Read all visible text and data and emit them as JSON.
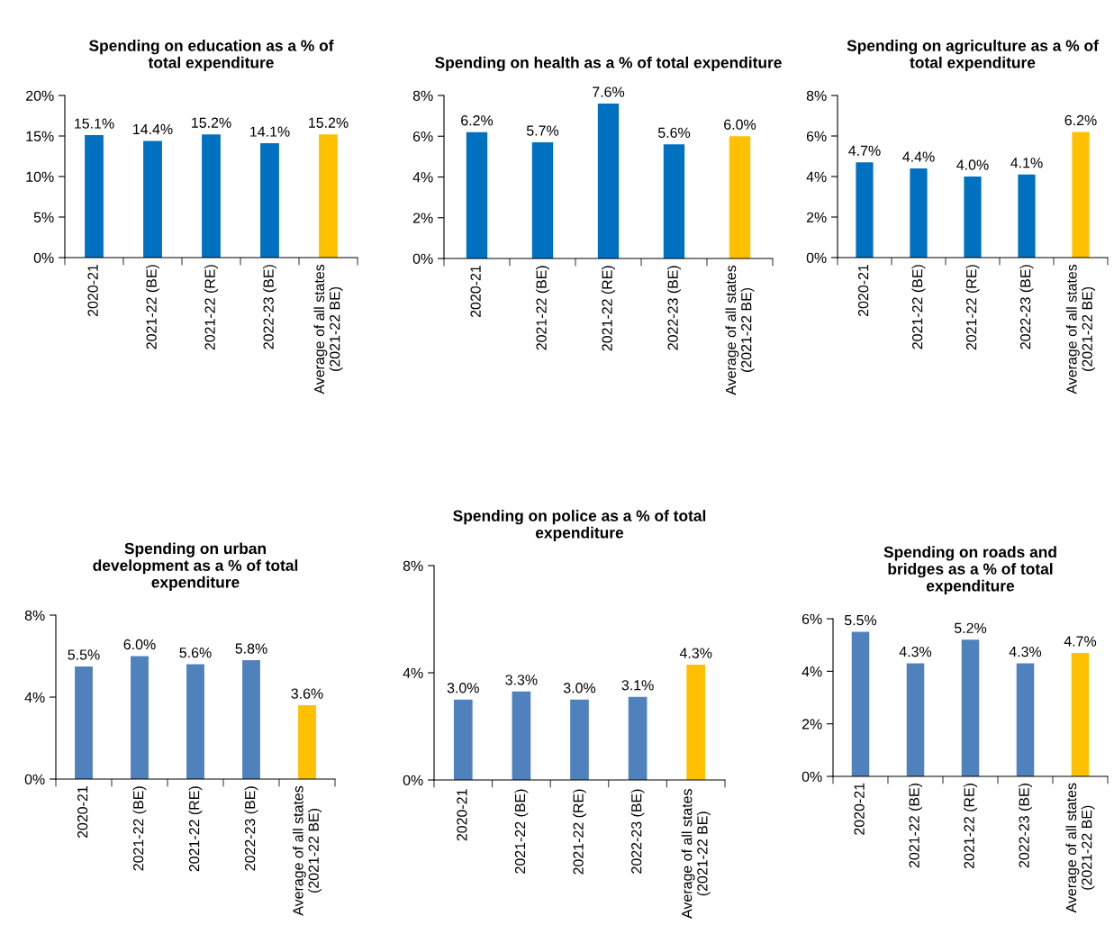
{
  "chart_data": [
    {
      "type": "bar",
      "title": "Spending on education as a % of total expenditure",
      "categories": [
        "2020-21",
        "2021-22 (BE)",
        "2021-22 (RE)",
        "2022-23 (BE)",
        "Average of all states (2021-22 BE)"
      ],
      "values": [
        15.1,
        14.4,
        15.2,
        14.1,
        15.2
      ],
      "value_labels": [
        "15.1%",
        "14.4%",
        "15.2%",
        "14.1%",
        "15.2%"
      ],
      "colors": [
        "#0070c0",
        "#0070c0",
        "#0070c0",
        "#0070c0",
        "#ffc000"
      ],
      "ylim": [
        0,
        20
      ],
      "yticks": [
        {
          "value": 0,
          "label": "0%"
        },
        {
          "value": 5,
          "label": "5%"
        },
        {
          "value": 10,
          "label": "10%"
        },
        {
          "value": 15,
          "label": "15%"
        },
        {
          "value": 20,
          "label": "20%"
        }
      ],
      "grid": false,
      "legend": false
    },
    {
      "type": "bar",
      "title": "Spending on health as a % of total expenditure",
      "categories": [
        "2020-21",
        "2021-22 (BE)",
        "2021-22 (RE)",
        "2022-23 (BE)",
        "Average of all states (2021-22 BE)"
      ],
      "values": [
        6.2,
        5.7,
        7.6,
        5.6,
        6.0
      ],
      "value_labels": [
        "6.2%",
        "5.7%",
        "7.6%",
        "5.6%",
        "6.0%"
      ],
      "colors": [
        "#0070c0",
        "#0070c0",
        "#0070c0",
        "#0070c0",
        "#ffc000"
      ],
      "ylim": [
        0,
        8
      ],
      "yticks": [
        {
          "value": 0,
          "label": "0%"
        },
        {
          "value": 2,
          "label": "2%"
        },
        {
          "value": 4,
          "label": "4%"
        },
        {
          "value": 6,
          "label": "6%"
        },
        {
          "value": 8,
          "label": "8%"
        }
      ],
      "grid": false,
      "legend": false
    },
    {
      "type": "bar",
      "title": "Spending on agriculture as a % of total expenditure",
      "categories": [
        "2020-21",
        "2021-22 (BE)",
        "2021-22 (RE)",
        "2022-23 (BE)",
        "Average of all states (2021-22 BE)"
      ],
      "values": [
        4.7,
        4.4,
        4.0,
        4.1,
        6.2
      ],
      "value_labels": [
        "4.7%",
        "4.4%",
        "4.0%",
        "4.1%",
        "6.2%"
      ],
      "colors": [
        "#0070c0",
        "#0070c0",
        "#0070c0",
        "#0070c0",
        "#ffc000"
      ],
      "ylim": [
        0,
        8
      ],
      "yticks": [
        {
          "value": 0,
          "label": "0%"
        },
        {
          "value": 2,
          "label": "2%"
        },
        {
          "value": 4,
          "label": "4%"
        },
        {
          "value": 6,
          "label": "6%"
        },
        {
          "value": 8,
          "label": "8%"
        }
      ],
      "grid": false,
      "legend": false
    },
    {
      "type": "bar",
      "title": "Spending on urban development as a % of total expenditure",
      "categories": [
        "2020-21",
        "2021-22 (BE)",
        "2021-22 (RE)",
        "2022-23 (BE)",
        "Average of all states (2021-22 BE)"
      ],
      "values": [
        5.5,
        6.0,
        5.6,
        5.8,
        3.6
      ],
      "value_labels": [
        "5.5%",
        "6.0%",
        "5.6%",
        "5.8%",
        "3.6%"
      ],
      "colors": [
        "#4f81bd",
        "#4f81bd",
        "#4f81bd",
        "#4f81bd",
        "#ffc000"
      ],
      "ylim": [
        0,
        8
      ],
      "yticks": [
        {
          "value": 0,
          "label": "0%"
        },
        {
          "value": 4,
          "label": "4%"
        },
        {
          "value": 8,
          "label": "8%"
        }
      ],
      "grid": false,
      "legend": false
    },
    {
      "type": "bar",
      "title": "Spending on police as a % of total expenditure",
      "categories": [
        "2020-21",
        "2021-22 (BE)",
        "2021-22 (RE)",
        "2022-23 (BE)",
        "Average of all states (2021-22 BE)"
      ],
      "values": [
        3.0,
        3.3,
        3.0,
        3.1,
        4.3
      ],
      "value_labels": [
        "3.0%",
        "3.3%",
        "3.0%",
        "3.1%",
        "4.3%"
      ],
      "colors": [
        "#4f81bd",
        "#4f81bd",
        "#4f81bd",
        "#4f81bd",
        "#ffc000"
      ],
      "ylim": [
        0,
        8
      ],
      "yticks": [
        {
          "value": 0,
          "label": "0%"
        },
        {
          "value": 4,
          "label": "4%"
        },
        {
          "value": 8,
          "label": "8%"
        }
      ],
      "grid": false,
      "legend": false
    },
    {
      "type": "bar",
      "title": "Spending on roads and bridges as a % of total expenditure",
      "categories": [
        "2020-21",
        "2021-22 (BE)",
        "2021-22 (RE)",
        "2022-23 (BE)",
        "Average of all states (2021-22 BE)"
      ],
      "values": [
        5.5,
        4.3,
        5.2,
        4.3,
        4.7
      ],
      "value_labels": [
        "5.5%",
        "4.3%",
        "5.2%",
        "4.3%",
        "4.7%"
      ],
      "colors": [
        "#4f81bd",
        "#4f81bd",
        "#4f81bd",
        "#4f81bd",
        "#ffc000"
      ],
      "ylim": [
        0,
        6
      ],
      "yticks": [
        {
          "value": 0,
          "label": "0%"
        },
        {
          "value": 2,
          "label": "2%"
        },
        {
          "value": 4,
          "label": "4%"
        },
        {
          "value": 6,
          "label": "6%"
        }
      ],
      "grid": false,
      "legend": false
    }
  ]
}
